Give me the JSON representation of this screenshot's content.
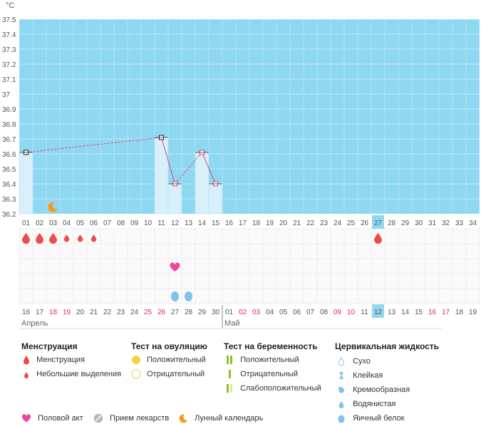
{
  "chart_data": {
    "type": "line",
    "unit_label": "°C",
    "ylim": [
      36.2,
      37.5
    ],
    "y_ticks": [
      "36.2",
      "36.3",
      "36.4",
      "36.5",
      "36.6",
      "36.7",
      "36.8",
      "36.9",
      "37",
      "37.1",
      "37.2",
      "37.3",
      "37.4",
      "37.5"
    ],
    "cycle_days": [
      "01",
      "02",
      "03",
      "04",
      "05",
      "06",
      "07",
      "08",
      "09",
      "10",
      "11",
      "12",
      "13",
      "14",
      "15",
      "16",
      "17",
      "18",
      "19",
      "20",
      "21",
      "22",
      "23",
      "24",
      "25",
      "26",
      "27",
      "28",
      "29",
      "30",
      "31",
      "32",
      "33",
      "34"
    ],
    "highlight_day": "27",
    "temperatures": [
      {
        "day": 1,
        "value": 36.61
      },
      {
        "day": 11,
        "value": 36.71
      },
      {
        "day": 12,
        "value": 36.4
      },
      {
        "day": 14,
        "value": 36.61
      },
      {
        "day": 15,
        "value": 36.4
      }
    ],
    "calendar_dates": [
      "16",
      "17",
      "18",
      "19",
      "20",
      "21",
      "22",
      "23",
      "24",
      "25",
      "26",
      "27",
      "28",
      "29",
      "30",
      "01",
      "02",
      "03",
      "04",
      "05",
      "06",
      "07",
      "08",
      "09",
      "10",
      "11",
      "12",
      "13",
      "14",
      "15",
      "16",
      "17",
      "18",
      "19"
    ],
    "weekend_date_indexes": [
      2,
      3,
      9,
      10,
      16,
      17,
      23,
      24,
      30,
      31
    ],
    "highlight_date": "12",
    "months": [
      {
        "label": "Апрель",
        "start_index": 0
      },
      {
        "label": "Май",
        "start_index": 15
      }
    ],
    "moon_day": 3,
    "menstruation_days": [
      {
        "day": 1,
        "size": "big"
      },
      {
        "day": 2,
        "size": "big"
      },
      {
        "day": 3,
        "size": "big"
      },
      {
        "day": 4,
        "size": "small"
      },
      {
        "day": 5,
        "size": "small"
      },
      {
        "day": 6,
        "size": "small"
      },
      {
        "day": 27,
        "size": "big"
      }
    ],
    "intercourse_days": [
      12
    ],
    "cervical_fluid_days": [
      {
        "day": 12,
        "type": "egg-white"
      },
      {
        "day": 13,
        "type": "egg-white"
      }
    ],
    "colors": {
      "plot_bg": "#8fd8f2",
      "bar": "#d8f0fb",
      "line": "#e0447a",
      "menstruation": "#ee4b4b",
      "heart": "#f045a0",
      "fluid": "#7fc3ea",
      "moon": "#f39c1f",
      "weekend": "#e8284f"
    }
  },
  "legend": {
    "menstruation": {
      "title": "Менструация",
      "items": [
        "Менструация",
        "Небольшие выделения"
      ]
    },
    "ovulation": {
      "title": "Тест на овуляцию",
      "items": [
        "Положительный",
        "Отрицательный"
      ]
    },
    "pregnancy": {
      "title": "Тест на беременность",
      "items": [
        "Положительный",
        "Отрицательный",
        "Слабоположительный"
      ]
    },
    "cervical": {
      "title": "Цервикальная жидкость",
      "items": [
        "Сухо",
        "Клейкая",
        "Кремообразная",
        "Водянистая",
        "Яичный белок"
      ]
    },
    "bottom": [
      "Половой акт",
      "Прием лекарств",
      "Лунный календарь"
    ]
  }
}
